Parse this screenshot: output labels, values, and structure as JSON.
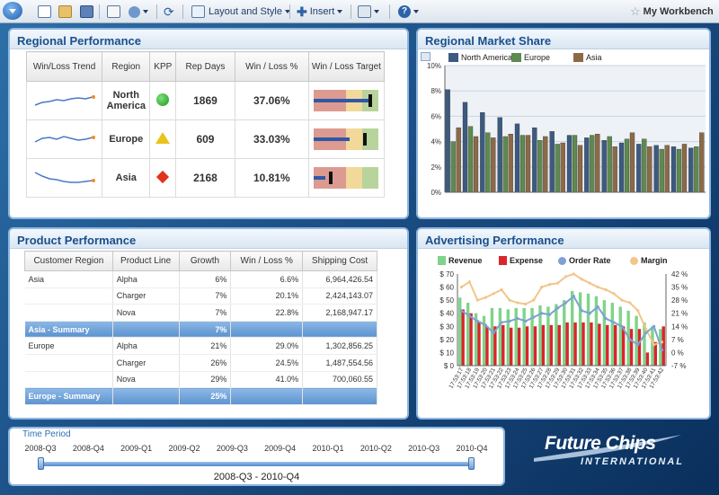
{
  "toolbar": {
    "layout_label": "Layout and Style",
    "insert_label": "Insert",
    "workbench_label": "My Workbench"
  },
  "regional_performance": {
    "title": "Regional Performance",
    "headers": [
      "Win/Loss Trend",
      "Region",
      "KPP",
      "Rep Days",
      "Win / Loss %",
      "Win / Loss Target"
    ],
    "rows": [
      {
        "region": "North America",
        "kpp": "circle-green-icon",
        "rep_days": "1869",
        "win_loss": "37.06%",
        "status": "win",
        "bullet_value": 0.85,
        "bullet_target": 0.87
      },
      {
        "region": "Europe",
        "kpp": "triangle-yellow-icon",
        "rep_days": "609",
        "win_loss": "33.03%",
        "status": "win",
        "bullet_value": 0.55,
        "bullet_target": 0.78
      },
      {
        "region": "Asia",
        "kpp": "diamond-red-icon",
        "rep_days": "2168",
        "win_loss": "10.81%",
        "status": "loss",
        "bullet_value": 0.18,
        "bullet_target": 0.26
      }
    ]
  },
  "market_share": {
    "title": "Regional Market Share",
    "chart_data": {
      "type": "bar",
      "series": [
        {
          "name": "North America",
          "color": "#3d5a80",
          "values": [
            8.1,
            7.1,
            6.3,
            5.9,
            5.4,
            5.1,
            4.8,
            4.5,
            4.3,
            4.1,
            3.9,
            3.8,
            3.7,
            3.6,
            3.5
          ]
        },
        {
          "name": "Europe",
          "color": "#5d8a4f",
          "values": [
            4.0,
            5.2,
            4.7,
            4.4,
            4.5,
            4.1,
            3.8,
            4.5,
            4.5,
            4.4,
            4.2,
            4.2,
            3.4,
            3.4,
            3.6
          ]
        },
        {
          "name": "Asia",
          "color": "#8c6a48",
          "values": [
            5.1,
            4.4,
            4.3,
            4.6,
            4.5,
            4.4,
            3.9,
            3.7,
            4.6,
            3.6,
            4.7,
            3.6,
            3.7,
            3.8,
            4.7
          ]
        }
      ],
      "yticks": [
        "0%",
        "2%",
        "4%",
        "6%",
        "8%",
        "10%"
      ],
      "ylim": [
        0,
        10
      ],
      "grid": true,
      "legend": "top"
    }
  },
  "product_performance": {
    "title": "Product Performance",
    "headers": [
      "Customer Region",
      "Product Line",
      "Growth",
      "Win / Loss %",
      "Shipping Cost"
    ],
    "rows": [
      {
        "region": "Asia",
        "product": "Alpha",
        "growth": "6%",
        "winloss": "6.6%",
        "cost": "6,964,426.54",
        "summary": false
      },
      {
        "region": "",
        "product": "Charger",
        "growth": "7%",
        "winloss": "20.1%",
        "cost": "2,424,143.07",
        "summary": false
      },
      {
        "region": "",
        "product": "Nova",
        "growth": "7%",
        "winloss": "22.8%",
        "cost": "2,168,947.17",
        "summary": false
      },
      {
        "region": "Asia - Summary",
        "product": "",
        "growth": "7%",
        "winloss": "",
        "cost": "",
        "summary": true
      },
      {
        "region": "Europe",
        "product": "Alpha",
        "growth": "21%",
        "winloss": "29.0%",
        "cost": "1,302,856.25",
        "summary": false
      },
      {
        "region": "",
        "product": "Charger",
        "growth": "26%",
        "winloss": "24.5%",
        "cost": "1,487,554.56",
        "summary": false
      },
      {
        "region": "",
        "product": "Nova",
        "growth": "29%",
        "winloss": "41.0%",
        "cost": "700,060.55",
        "summary": false
      },
      {
        "region": "Europe - Summary",
        "product": "",
        "growth": "25%",
        "winloss": "",
        "cost": "",
        "summary": true
      }
    ]
  },
  "advertising": {
    "title": "Advertising Performance",
    "chart_data": {
      "type": "bar",
      "legend": [
        "Revenue",
        "Expense",
        "Order Rate",
        "Margin"
      ],
      "colors": {
        "revenue": "#7ed48a",
        "expense": "#d8262b",
        "order_rate": "#7fa0d4",
        "margin": "#f3c58a"
      },
      "categories": [
        "17:53:17",
        "17:53:18",
        "17:53:19",
        "17:53:20",
        "17:53:21",
        "17:53:22",
        "17:53:23",
        "17:53:24",
        "17:53:25",
        "17:53:26",
        "17:53:27",
        "17:53:28",
        "17:53:29",
        "17:53:30",
        "17:53:31",
        "17:53:32",
        "17:53:33",
        "17:53:34",
        "17:53:35",
        "17:53:36",
        "17:53:37",
        "17:53:38",
        "17:53:39",
        "17:53:40",
        "17:53:41",
        "17:53:42"
      ],
      "left_ticks": [
        "$ 0",
        "$ 10",
        "$ 20",
        "$ 30",
        "$ 40",
        "$ 50",
        "$ 60",
        "$ 70"
      ],
      "right_ticks": [
        "-7 %",
        "0 %",
        "7 %",
        "14 %",
        "21 %",
        "28 %",
        "35 %",
        "42 %"
      ],
      "revenue": [
        52,
        48,
        40,
        38,
        44,
        44,
        43,
        44,
        44,
        44,
        46,
        45,
        47,
        50,
        57,
        56,
        55,
        53,
        50,
        48,
        45,
        42,
        38,
        33,
        30,
        28
      ],
      "expense": [
        43,
        40,
        34,
        30,
        30,
        31,
        29,
        29,
        30,
        30,
        31,
        31,
        31,
        33,
        33,
        33,
        33,
        32,
        31,
        31,
        30,
        28,
        28,
        10,
        18,
        30
      ],
      "order_rate": [
        42,
        38,
        34,
        31,
        25,
        33,
        34,
        36,
        34,
        37,
        40,
        39,
        44,
        48,
        53,
        42,
        40,
        45,
        36,
        33,
        30,
        20,
        16,
        25,
        30,
        12
      ],
      "margin": [
        60,
        64,
        50,
        52,
        55,
        58,
        50,
        48,
        47,
        50,
        60,
        62,
        63,
        68,
        70,
        66,
        63,
        60,
        58,
        55,
        50,
        48,
        42,
        28,
        16,
        18
      ]
    }
  },
  "time_period": {
    "label": "Time Period",
    "ticks": [
      "2008-Q3",
      "2008-Q4",
      "2009-Q1",
      "2009-Q2",
      "2009-Q3",
      "2009-Q4",
      "2010-Q1",
      "2010-Q2",
      "2010-Q3",
      "2010-Q4"
    ],
    "range_label": "2008-Q3 - 2010-Q4"
  },
  "logo": {
    "line1": "Future Chips",
    "line2": "INTERNATIONAL"
  }
}
